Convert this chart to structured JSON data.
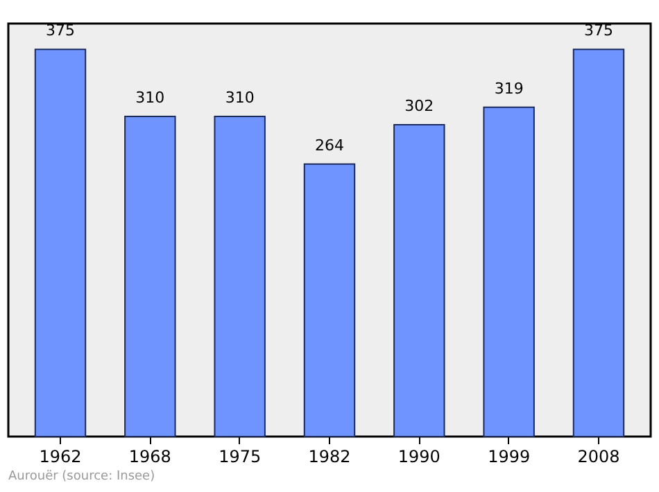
{
  "chart_data": {
    "type": "bar",
    "categories": [
      "1962",
      "1968",
      "1975",
      "1982",
      "1990",
      "1999",
      "2008"
    ],
    "values": [
      375,
      310,
      310,
      264,
      302,
      319,
      375
    ],
    "color": "#7094ff",
    "data_labels": true,
    "grid": false,
    "annotations": [
      "Aurouër  (source: Insee)"
    ]
  }
}
